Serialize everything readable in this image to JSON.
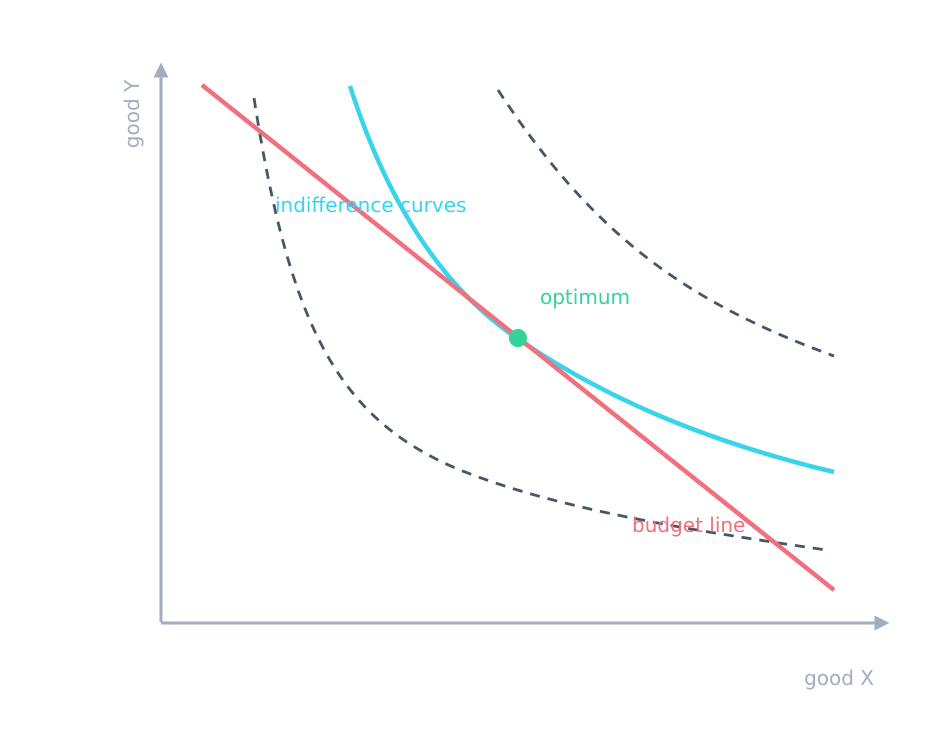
{
  "axes": {
    "x_label": "good X",
    "y_label": "good Y",
    "color": "#a0aec0"
  },
  "labels": {
    "indifference": "indifference curves",
    "optimum": "optimum",
    "budget": "budget line"
  },
  "colors": {
    "indifference_main": "#38d4ec",
    "indifference_other": "#475569",
    "budget": "#f0707e",
    "optimum": "#34d399",
    "axis": "#a0aec0"
  }
}
